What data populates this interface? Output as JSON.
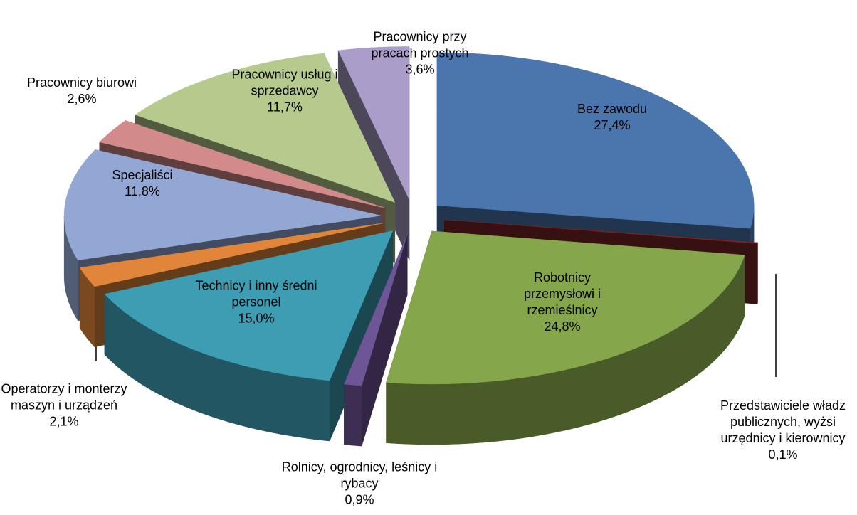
{
  "chart_data": {
    "type": "pie",
    "categories": [
      "Bez zawodu",
      "Przedstawiciele władz publicznych, wyżsi urzędnicy i kierownicy",
      "Robotnicy przemysłowi i rzemieślnicy",
      "Rolnicy, ogrodnicy, leśnicy i rybacy",
      "Technicy i inny średni personel",
      "Operatorzy i monterzy maszyn i urządzeń",
      "Specjaliści",
      "Pracownicy biurowi",
      "Pracownicy usług i sprzedawcy",
      "Pracownicy przy pracach prostych"
    ],
    "values": [
      27.4,
      0.1,
      24.8,
      0.9,
      15.0,
      2.1,
      11.8,
      2.6,
      11.7,
      3.6
    ],
    "value_labels": [
      "27,4%",
      "0,1%",
      "24,8%",
      "0,9%",
      "15,0%",
      "2,1%",
      "11,8%",
      "2,6%",
      "11,7%",
      "3,6%"
    ],
    "colors": [
      "#4a76ad",
      "#7a2626",
      "#86a64c",
      "#6e5596",
      "#3d9db3",
      "#e0853a",
      "#93a7d4",
      "#d28a8a",
      "#b6ca8e",
      "#ab9dc9"
    ]
  }
}
